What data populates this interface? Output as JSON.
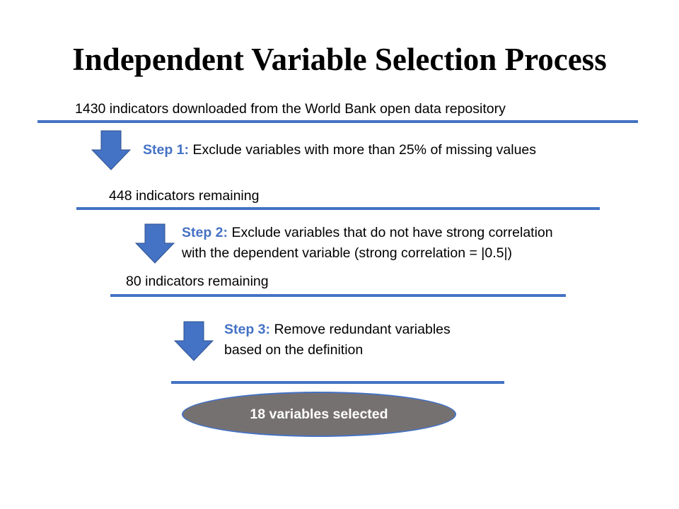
{
  "title": "Independent Variable Selection Process",
  "stages": [
    {
      "text": "1430 indicators downloaded from the World Bank open data repository"
    },
    {
      "text": "448 indicators remaining"
    },
    {
      "text": "80 indicators remaining"
    }
  ],
  "steps": [
    {
      "label": "Step 1:",
      "lines": [
        "Exclude variables with more than 25% of missing values"
      ]
    },
    {
      "label": "Step 2:",
      "lines": [
        "Exclude variables that do not have strong correlation",
        "with the dependent variable (strong correlation  = |0.5|)"
      ]
    },
    {
      "label": "Step 3:",
      "lines": [
        "Remove redundant variables",
        "based on the definition"
      ]
    }
  ],
  "result": {
    "text": "18 variables selected"
  },
  "colors": {
    "accent": "#4472c4",
    "result_fill": "#767171",
    "result_text": "#ffffff"
  }
}
